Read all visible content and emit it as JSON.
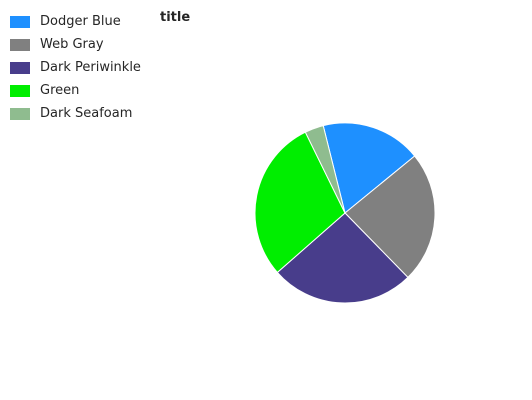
{
  "chart_data": {
    "type": "pie",
    "title": "title",
    "slices": [
      {
        "label": "Dodger Blue",
        "value": 16,
        "color": "#1e90ff"
      },
      {
        "label": "Web Gray",
        "value": 21,
        "color": "#808080"
      },
      {
        "label": "Dark Periwinkle",
        "value": 23,
        "color": "#483d8b"
      },
      {
        "label": "Green",
        "value": 26,
        "color": "#00ee00"
      },
      {
        "label": "Dark Seafoam",
        "value": 3,
        "color": "#8fbc8f"
      }
    ],
    "legend_position": "top-left"
  }
}
